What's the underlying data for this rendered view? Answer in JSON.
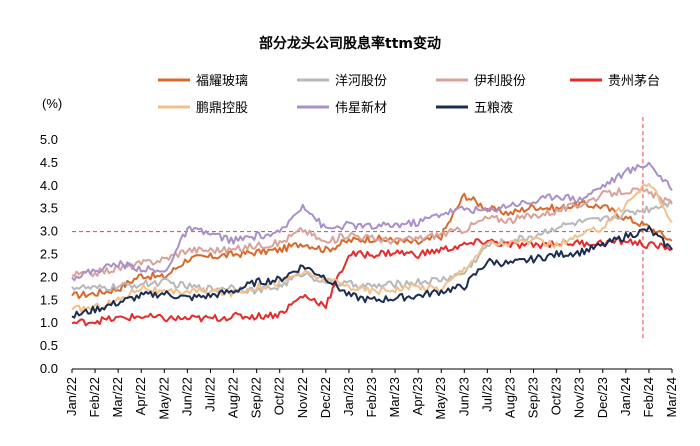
{
  "chart_data": {
    "type": "line",
    "title": "部分龙头公司股息率ttm变动",
    "ylabel": "(%)",
    "xlabel": "",
    "ylim": [
      0.0,
      5.0
    ],
    "y_ticks": [
      "0.0",
      "0.5",
      "1.0",
      "1.5",
      "2.0",
      "2.5",
      "3.0",
      "3.5",
      "4.0",
      "4.5",
      "5.0"
    ],
    "categories": [
      "Jan/22",
      "Feb/22",
      "Mar/22",
      "Apr/22",
      "May/22",
      "Jun/22",
      "Jul/22",
      "Aug/22",
      "Sep/22",
      "Oct/22",
      "Nov/22",
      "Dec/22",
      "Jan/23",
      "Feb/23",
      "Mar/23",
      "Apr/23",
      "May/23",
      "Jun/23",
      "Jul/23",
      "Aug/23",
      "Sep/23",
      "Oct/23",
      "Nov/23",
      "Dec/23",
      "Jan/24",
      "Feb/24",
      "Mar/24"
    ],
    "reference_line": {
      "y": 3.0,
      "color": "#e8433a",
      "style": "dashed"
    },
    "vertical_marker": {
      "x": "Feb/24",
      "color": "#e8433a",
      "style": "dashed"
    },
    "series": [
      {
        "name": "福耀玻璃",
        "color": "#d9692a",
        "values": [
          1.6,
          1.65,
          1.75,
          2.05,
          2.0,
          2.4,
          2.45,
          2.5,
          2.55,
          2.6,
          2.75,
          2.6,
          2.8,
          2.85,
          2.8,
          2.75,
          2.9,
          3.8,
          3.5,
          3.4,
          3.55,
          3.5,
          3.6,
          3.55,
          3.3,
          3.1,
          2.8
        ]
      },
      {
        "name": "洋河股份",
        "color": "#b8b8b8",
        "values": [
          1.8,
          1.75,
          1.8,
          1.85,
          1.9,
          1.8,
          1.75,
          1.8,
          1.7,
          1.8,
          2.1,
          1.9,
          1.85,
          1.8,
          1.85,
          1.9,
          1.95,
          2.1,
          2.7,
          2.8,
          2.9,
          3.1,
          3.2,
          3.25,
          3.4,
          3.5,
          3.65
        ]
      },
      {
        "name": "伊利股份",
        "color": "#d9a29a",
        "values": [
          2.05,
          2.1,
          2.2,
          2.3,
          2.4,
          2.6,
          2.6,
          2.6,
          2.7,
          2.75,
          3.05,
          2.75,
          2.95,
          2.85,
          2.8,
          2.85,
          2.95,
          3.05,
          3.3,
          3.25,
          3.35,
          3.45,
          3.6,
          3.8,
          3.9,
          3.85,
          3.6
        ]
      },
      {
        "name": "贵州茅台",
        "color": "#e52b2b",
        "values": [
          1.0,
          1.05,
          1.1,
          1.15,
          1.1,
          1.1,
          1.1,
          1.15,
          1.15,
          1.2,
          1.6,
          1.4,
          2.5,
          2.5,
          2.55,
          2.5,
          2.6,
          2.7,
          2.8,
          2.7,
          2.7,
          2.75,
          2.75,
          2.75,
          2.8,
          2.7,
          2.65
        ]
      },
      {
        "name": "鹏鼎控股",
        "color": "#f2c08f",
        "values": [
          1.3,
          1.35,
          1.5,
          1.8,
          1.65,
          1.7,
          1.7,
          1.65,
          1.8,
          1.9,
          2.1,
          1.95,
          1.8,
          1.7,
          1.75,
          1.8,
          1.75,
          2.2,
          2.75,
          2.75,
          2.8,
          2.7,
          2.9,
          3.1,
          3.6,
          4.1,
          3.2
        ]
      },
      {
        "name": "伟星新材",
        "color": "#a990c9",
        "values": [
          2.0,
          2.15,
          2.3,
          2.2,
          2.1,
          3.05,
          2.95,
          2.8,
          2.9,
          2.95,
          3.6,
          3.05,
          3.15,
          3.1,
          3.15,
          3.2,
          3.4,
          3.5,
          3.45,
          3.6,
          3.65,
          3.8,
          3.7,
          4.0,
          4.3,
          4.5,
          3.9
        ]
      },
      {
        "name": "五粮液",
        "color": "#1c2d52",
        "values": [
          1.15,
          1.3,
          1.45,
          1.6,
          1.65,
          1.55,
          1.6,
          1.7,
          1.9,
          1.95,
          2.25,
          2.0,
          1.6,
          1.5,
          1.55,
          1.6,
          1.7,
          1.8,
          2.35,
          2.3,
          2.4,
          2.5,
          2.55,
          2.7,
          2.9,
          3.05,
          2.6
        ]
      }
    ]
  }
}
